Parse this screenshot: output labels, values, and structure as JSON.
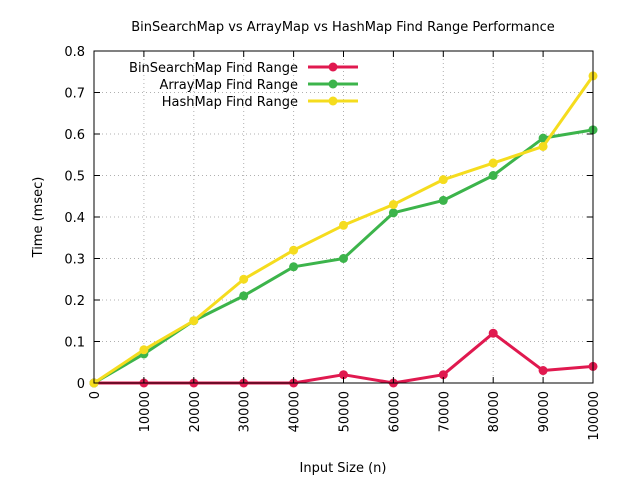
{
  "chart_data": {
    "type": "line",
    "title": "BinSearchMap vs ArrayMap vs HashMap Find Range Performance",
    "xlabel": "Input Size (n)",
    "ylabel": "Time (msec)",
    "x": [
      0,
      10000,
      20000,
      30000,
      40000,
      50000,
      60000,
      70000,
      80000,
      90000,
      100000
    ],
    "xlim": [
      0,
      100000
    ],
    "ylim": [
      0,
      0.8
    ],
    "xticks": [
      "0",
      "10000",
      "20000",
      "30000",
      "40000",
      "50000",
      "60000",
      "70000",
      "80000",
      "90000",
      "100000"
    ],
    "yticks": [
      "0",
      "0.1",
      "0.2",
      "0.3",
      "0.4",
      "0.5",
      "0.6",
      "0.7",
      "0.8"
    ],
    "grid": true,
    "legend_position": "top-left",
    "series": [
      {
        "name": "BinSearchMap Find Range",
        "color": "#e0194f",
        "values": [
          0,
          0,
          0,
          0,
          0,
          0.02,
          0,
          0.02,
          0.12,
          0.03,
          0.04
        ]
      },
      {
        "name": "ArrayMap Find Range",
        "color": "#3cb44b",
        "values": [
          0,
          0.07,
          0.15,
          0.21,
          0.28,
          0.3,
          0.41,
          0.44,
          0.5,
          0.59,
          0.61
        ]
      },
      {
        "name": "HashMap Find Range",
        "color": "#f5dc1e",
        "values": [
          0,
          0.08,
          0.15,
          0.25,
          0.32,
          0.38,
          0.43,
          0.49,
          0.53,
          0.57,
          0.74
        ]
      }
    ]
  }
}
